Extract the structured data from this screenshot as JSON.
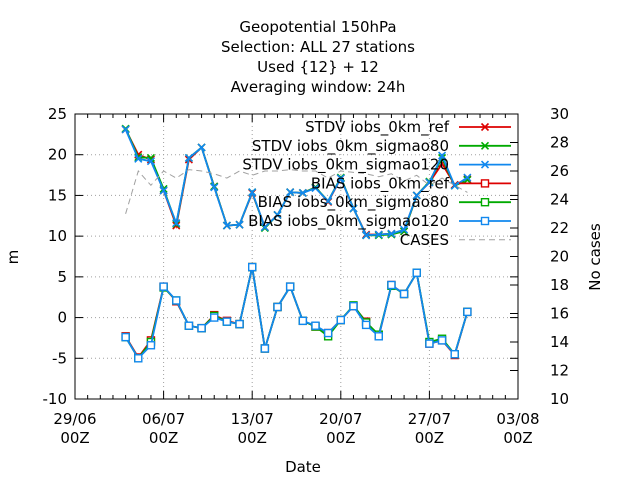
{
  "chart_data": {
    "type": "line",
    "title_lines": [
      "Geopotential 150hPa",
      "Selection: ALL      27 stations",
      "Used {12} + 12",
      "Averaging window: 24h"
    ],
    "xlabel": "Date",
    "ylabel": "m",
    "y2label": "No cases",
    "x_ticks": [
      {
        "day": 0,
        "line1": "29/06",
        "line2": "00Z"
      },
      {
        "day": 7,
        "line1": "06/07",
        "line2": "00Z"
      },
      {
        "day": 14,
        "line1": "13/07",
        "line2": "00Z"
      },
      {
        "day": 21,
        "line1": "20/07",
        "line2": "00Z"
      },
      {
        "day": 28,
        "line1": "27/07",
        "line2": "00Z"
      },
      {
        "day": 35,
        "line1": "03/08",
        "line2": "00Z"
      }
    ],
    "xlim_days": [
      0,
      35
    ],
    "ylim": [
      -10,
      25
    ],
    "yticks": [
      -10,
      -5,
      0,
      5,
      10,
      15,
      20,
      25
    ],
    "y2lim": [
      10,
      30
    ],
    "y2ticks": [
      10,
      12,
      14,
      16,
      18,
      20,
      22,
      24,
      26,
      28,
      30
    ],
    "grid": true,
    "legend_position": "top-right",
    "x_days": [
      4,
      5,
      6,
      7,
      8,
      9,
      10,
      11,
      12,
      13,
      14,
      15,
      16,
      17,
      18,
      19,
      20,
      21,
      22,
      23,
      24,
      25,
      26,
      27,
      28,
      29,
      30,
      31
    ],
    "series": [
      {
        "name": "STDV iobs_0km_ref",
        "color": "#dd0000",
        "marker": "x",
        "axis": "y1",
        "values": [
          23.1,
          20.0,
          19.4,
          15.6,
          11.3,
          19.4,
          20.9,
          16.1,
          11.3,
          11.4,
          15.3,
          11.1,
          12.6,
          15.4,
          15.3,
          16.0,
          14.2,
          17.1,
          13.4,
          10.2,
          10.2,
          10.3,
          10.6,
          15.0,
          16.6,
          18.9,
          16.3,
          17.0
        ]
      },
      {
        "name": "STDV iobs_0km_sigmao80",
        "color": "#00aa00",
        "marker": "x",
        "axis": "y1",
        "values": [
          23.2,
          19.7,
          19.6,
          15.8,
          11.5,
          19.6,
          20.9,
          16.1,
          11.3,
          11.4,
          15.4,
          11.0,
          12.6,
          15.4,
          15.3,
          16.0,
          14.3,
          17.2,
          13.4,
          10.1,
          10.1,
          10.2,
          10.6,
          15.0,
          16.7,
          19.6,
          16.2,
          16.9
        ]
      },
      {
        "name": "STDV iobs_0km_sigmao120",
        "color": "#1188ee",
        "marker": "x",
        "axis": "y1",
        "values": [
          23.1,
          19.5,
          19.2,
          15.6,
          11.6,
          19.6,
          20.9,
          16.0,
          11.3,
          11.4,
          15.4,
          11.1,
          12.6,
          15.4,
          15.3,
          15.9,
          14.3,
          17.1,
          13.4,
          10.1,
          10.2,
          10.3,
          10.8,
          15.0,
          16.6,
          19.9,
          16.2,
          17.2
        ]
      },
      {
        "name": "BIAS iobs_0km_ref",
        "color": "#dd0000",
        "marker": "square",
        "axis": "y1",
        "values": [
          -2.3,
          -4.9,
          -2.8,
          3.8,
          2.0,
          -1.0,
          -1.3,
          0.3,
          -0.4,
          -0.8,
          6.2,
          -3.8,
          1.3,
          3.8,
          -0.4,
          -1.1,
          -1.9,
          -0.3,
          1.4,
          -0.5,
          -2.3,
          4.0,
          2.9,
          5.5,
          -3.2,
          -2.8,
          -4.6,
          0.7
        ]
      },
      {
        "name": "BIAS iobs_0km_sigmao80",
        "color": "#00aa00",
        "marker": "square",
        "axis": "y1",
        "values": [
          -2.4,
          -5.0,
          -3.0,
          3.7,
          2.1,
          -1.0,
          -1.3,
          0.2,
          -0.5,
          -0.8,
          6.2,
          -3.8,
          1.3,
          3.8,
          -0.4,
          -1.1,
          -2.3,
          -0.3,
          1.5,
          -0.6,
          -2.1,
          3.9,
          2.9,
          5.5,
          -3.0,
          -2.6,
          -4.5,
          0.7
        ]
      },
      {
        "name": "BIAS iobs_0km_sigmao120",
        "color": "#1188ee",
        "marker": "square",
        "axis": "y1",
        "values": [
          -2.4,
          -5.0,
          -3.4,
          3.8,
          2.1,
          -1.0,
          -1.3,
          0.0,
          -0.5,
          -0.8,
          6.2,
          -3.8,
          1.3,
          3.8,
          -0.4,
          -1.0,
          -1.9,
          -0.3,
          1.4,
          -0.9,
          -2.3,
          4.0,
          2.9,
          5.5,
          -3.2,
          -2.8,
          -4.5,
          0.7
        ]
      },
      {
        "name": "CASES",
        "color": "#a0a0a0",
        "marker": "none",
        "dashed": true,
        "axis": "y2",
        "values": [
          23.0,
          26.0,
          25.0,
          26.0,
          25.5,
          26.1,
          26.0,
          25.8,
          25.5,
          26.0,
          25.7,
          26.0,
          26.0,
          26.1,
          26.0,
          26.0,
          25.5,
          26.0,
          25.9,
          25.8,
          25.6,
          25.8,
          25.3,
          25.7,
          25.0,
          25.5,
          25.0,
          24.5
        ]
      }
    ]
  }
}
